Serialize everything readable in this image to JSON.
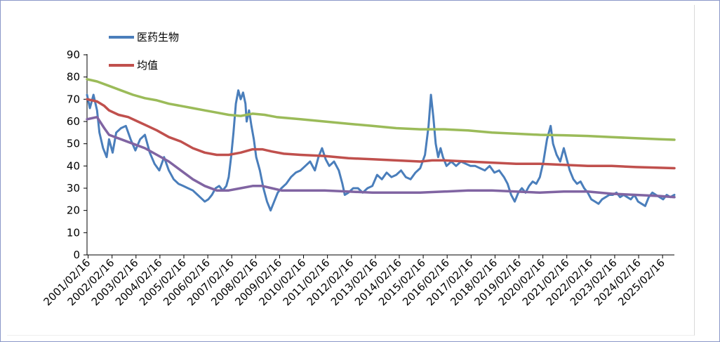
{
  "chart_data": {
    "type": "line",
    "title": "",
    "xlabel": "",
    "ylabel": "",
    "ylim": [
      0,
      90
    ],
    "yticks": [
      0,
      10,
      20,
      30,
      40,
      50,
      60,
      70,
      80,
      90
    ],
    "x_range": [
      2001.08,
      2025.62
    ],
    "categories": [
      "2001/02/16",
      "2002/02/16",
      "2003/02/16",
      "2004/02/16",
      "2005/02/16",
      "2006/02/16",
      "2007/02/16",
      "2008/02/16",
      "2009/02/16",
      "2010/02/16",
      "2011/02/16",
      "2012/02/16",
      "2013/02/16",
      "2014/02/16",
      "2015/02/16",
      "2016/02/16",
      "2017/02/16",
      "2018/02/16",
      "2019/02/16",
      "2020/02/16",
      "2021/02/16",
      "2022/02/16",
      "2023/02/16",
      "2024/02/16",
      "2025/02/16"
    ],
    "grid": false,
    "legend_position": "top-left",
    "series": [
      {
        "name": "医药生物",
        "color": "#4a7ebb",
        "points": [
          [
            2001.08,
            72
          ],
          [
            2001.2,
            66
          ],
          [
            2001.35,
            72
          ],
          [
            2001.5,
            65
          ],
          [
            2001.6,
            55
          ],
          [
            2001.75,
            48
          ],
          [
            2001.9,
            44
          ],
          [
            2002.0,
            52
          ],
          [
            2002.15,
            46
          ],
          [
            2002.3,
            55
          ],
          [
            2002.5,
            57
          ],
          [
            2002.7,
            58
          ],
          [
            2002.9,
            52
          ],
          [
            2003.1,
            47
          ],
          [
            2003.3,
            52
          ],
          [
            2003.5,
            54
          ],
          [
            2003.7,
            46
          ],
          [
            2003.9,
            41
          ],
          [
            2004.1,
            38
          ],
          [
            2004.3,
            44
          ],
          [
            2004.5,
            38
          ],
          [
            2004.7,
            34
          ],
          [
            2004.9,
            32
          ],
          [
            2005.1,
            31
          ],
          [
            2005.3,
            30
          ],
          [
            2005.5,
            29
          ],
          [
            2005.7,
            27
          ],
          [
            2005.9,
            25
          ],
          [
            2006.0,
            24
          ],
          [
            2006.15,
            25
          ],
          [
            2006.3,
            27
          ],
          [
            2006.45,
            30
          ],
          [
            2006.6,
            31
          ],
          [
            2006.75,
            29
          ],
          [
            2006.9,
            31
          ],
          [
            2007.0,
            35
          ],
          [
            2007.1,
            44
          ],
          [
            2007.2,
            55
          ],
          [
            2007.3,
            68
          ],
          [
            2007.4,
            74
          ],
          [
            2007.5,
            70
          ],
          [
            2007.6,
            73
          ],
          [
            2007.7,
            68
          ],
          [
            2007.75,
            60
          ],
          [
            2007.85,
            65
          ],
          [
            2007.95,
            58
          ],
          [
            2008.05,
            52
          ],
          [
            2008.15,
            44
          ],
          [
            2008.3,
            38
          ],
          [
            2008.45,
            30
          ],
          [
            2008.6,
            24
          ],
          [
            2008.75,
            20
          ],
          [
            2008.9,
            24
          ],
          [
            2009.05,
            28
          ],
          [
            2009.2,
            30
          ],
          [
            2009.4,
            32
          ],
          [
            2009.6,
            35
          ],
          [
            2009.8,
            37
          ],
          [
            2010.0,
            38
          ],
          [
            2010.2,
            40
          ],
          [
            2010.4,
            42
          ],
          [
            2010.6,
            38
          ],
          [
            2010.75,
            44
          ],
          [
            2010.9,
            48
          ],
          [
            2011.05,
            43
          ],
          [
            2011.2,
            40
          ],
          [
            2011.4,
            42
          ],
          [
            2011.6,
            38
          ],
          [
            2011.75,
            32
          ],
          [
            2011.85,
            27
          ],
          [
            2012.0,
            28
          ],
          [
            2012.2,
            30
          ],
          [
            2012.4,
            30
          ],
          [
            2012.6,
            28
          ],
          [
            2012.8,
            30
          ],
          [
            2013.0,
            31
          ],
          [
            2013.2,
            36
          ],
          [
            2013.4,
            34
          ],
          [
            2013.6,
            37
          ],
          [
            2013.8,
            35
          ],
          [
            2014.0,
            36
          ],
          [
            2014.2,
            38
          ],
          [
            2014.4,
            35
          ],
          [
            2014.6,
            34
          ],
          [
            2014.8,
            37
          ],
          [
            2015.0,
            39
          ],
          [
            2015.2,
            45
          ],
          [
            2015.35,
            58
          ],
          [
            2015.45,
            72
          ],
          [
            2015.55,
            62
          ],
          [
            2015.65,
            50
          ],
          [
            2015.75,
            44
          ],
          [
            2015.85,
            48
          ],
          [
            2015.95,
            44
          ],
          [
            2016.1,
            40
          ],
          [
            2016.3,
            42
          ],
          [
            2016.5,
            40
          ],
          [
            2016.7,
            42
          ],
          [
            2016.9,
            41
          ],
          [
            2017.1,
            40
          ],
          [
            2017.3,
            40
          ],
          [
            2017.5,
            39
          ],
          [
            2017.7,
            38
          ],
          [
            2017.9,
            40
          ],
          [
            2018.1,
            37
          ],
          [
            2018.3,
            38
          ],
          [
            2018.5,
            35
          ],
          [
            2018.65,
            32
          ],
          [
            2018.8,
            27
          ],
          [
            2018.95,
            24
          ],
          [
            2019.1,
            28
          ],
          [
            2019.25,
            30
          ],
          [
            2019.4,
            28
          ],
          [
            2019.55,
            31
          ],
          [
            2019.7,
            33
          ],
          [
            2019.85,
            32
          ],
          [
            2020.0,
            35
          ],
          [
            2020.15,
            42
          ],
          [
            2020.3,
            52
          ],
          [
            2020.45,
            58
          ],
          [
            2020.55,
            50
          ],
          [
            2020.7,
            45
          ],
          [
            2020.85,
            42
          ],
          [
            2021.0,
            48
          ],
          [
            2021.1,
            44
          ],
          [
            2021.25,
            38
          ],
          [
            2021.4,
            34
          ],
          [
            2021.55,
            32
          ],
          [
            2021.7,
            33
          ],
          [
            2021.85,
            30
          ],
          [
            2022.0,
            28
          ],
          [
            2022.15,
            25
          ],
          [
            2022.3,
            24
          ],
          [
            2022.45,
            23
          ],
          [
            2022.6,
            25
          ],
          [
            2022.75,
            26
          ],
          [
            2022.9,
            27
          ],
          [
            2023.05,
            27
          ],
          [
            2023.2,
            28
          ],
          [
            2023.35,
            26
          ],
          [
            2023.5,
            27
          ],
          [
            2023.65,
            26
          ],
          [
            2023.8,
            25
          ],
          [
            2023.95,
            27
          ],
          [
            2024.1,
            24
          ],
          [
            2024.25,
            23
          ],
          [
            2024.4,
            22
          ],
          [
            2024.55,
            26
          ],
          [
            2024.7,
            28
          ],
          [
            2024.85,
            27
          ],
          [
            2025.0,
            26
          ],
          [
            2025.15,
            25
          ],
          [
            2025.3,
            27
          ],
          [
            2025.45,
            26
          ],
          [
            2025.62,
            27
          ]
        ]
      },
      {
        "name": "均值",
        "color": "#c0504d",
        "points": [
          [
            2001.08,
            70
          ],
          [
            2001.5,
            69
          ],
          [
            2001.8,
            67
          ],
          [
            2002.0,
            65
          ],
          [
            2002.4,
            63
          ],
          [
            2002.8,
            62
          ],
          [
            2003.2,
            60
          ],
          [
            2003.6,
            58
          ],
          [
            2004.0,
            56
          ],
          [
            2004.5,
            53
          ],
          [
            2005.0,
            51
          ],
          [
            2005.5,
            48
          ],
          [
            2006.0,
            46
          ],
          [
            2006.5,
            45
          ],
          [
            2007.0,
            45
          ],
          [
            2007.5,
            46
          ],
          [
            2008.0,
            47.5
          ],
          [
            2008.4,
            47.5
          ],
          [
            2008.8,
            46.5
          ],
          [
            2009.3,
            45.5
          ],
          [
            2010.0,
            45
          ],
          [
            2011.0,
            44.5
          ],
          [
            2012.0,
            43.5
          ],
          [
            2013.0,
            43
          ],
          [
            2014.0,
            42.5
          ],
          [
            2015.0,
            42
          ],
          [
            2015.5,
            42.5
          ],
          [
            2016.0,
            42.5
          ],
          [
            2017.0,
            42
          ],
          [
            2018.0,
            41.5
          ],
          [
            2019.0,
            41
          ],
          [
            2020.0,
            41
          ],
          [
            2021.0,
            40.5
          ],
          [
            2022.0,
            40
          ],
          [
            2023.0,
            40
          ],
          [
            2024.0,
            39.5
          ],
          [
            2025.0,
            39.2
          ],
          [
            2025.62,
            39
          ]
        ]
      },
      {
        "name": "",
        "color": "#9bbb59",
        "points": [
          [
            2001.08,
            79
          ],
          [
            2001.5,
            78
          ],
          [
            2002.0,
            76
          ],
          [
            2002.5,
            74
          ],
          [
            2003.0,
            72
          ],
          [
            2003.5,
            70.5
          ],
          [
            2004.0,
            69.5
          ],
          [
            2004.5,
            68
          ],
          [
            2005.0,
            67
          ],
          [
            2005.5,
            66
          ],
          [
            2006.0,
            65
          ],
          [
            2006.5,
            64
          ],
          [
            2007.0,
            63
          ],
          [
            2007.5,
            62.5
          ],
          [
            2008.0,
            63.5
          ],
          [
            2008.5,
            63
          ],
          [
            2009.0,
            62
          ],
          [
            2010.0,
            61
          ],
          [
            2011.0,
            60
          ],
          [
            2012.0,
            59
          ],
          [
            2013.0,
            58
          ],
          [
            2014.0,
            57
          ],
          [
            2015.0,
            56.5
          ],
          [
            2016.0,
            56.5
          ],
          [
            2017.0,
            56
          ],
          [
            2018.0,
            55
          ],
          [
            2019.0,
            54.5
          ],
          [
            2020.0,
            54
          ],
          [
            2021.0,
            53.8
          ],
          [
            2022.0,
            53.5
          ],
          [
            2023.0,
            53
          ],
          [
            2024.0,
            52.5
          ],
          [
            2025.0,
            52
          ],
          [
            2025.62,
            51.8
          ]
        ]
      },
      {
        "name": "",
        "color": "#8064a2",
        "points": [
          [
            2001.08,
            61
          ],
          [
            2001.5,
            62
          ],
          [
            2001.8,
            57
          ],
          [
            2002.0,
            54
          ],
          [
            2002.5,
            52
          ],
          [
            2003.0,
            50
          ],
          [
            2003.5,
            48
          ],
          [
            2004.0,
            45
          ],
          [
            2004.5,
            42
          ],
          [
            2005.0,
            38
          ],
          [
            2005.5,
            34
          ],
          [
            2006.0,
            31
          ],
          [
            2006.5,
            29
          ],
          [
            2007.0,
            29
          ],
          [
            2007.5,
            30
          ],
          [
            2008.0,
            31
          ],
          [
            2008.4,
            31
          ],
          [
            2008.8,
            30
          ],
          [
            2009.2,
            29
          ],
          [
            2010.0,
            29
          ],
          [
            2011.0,
            29
          ],
          [
            2012.0,
            28.5
          ],
          [
            2013.0,
            28
          ],
          [
            2014.0,
            28
          ],
          [
            2015.0,
            28
          ],
          [
            2016.0,
            28.5
          ],
          [
            2017.0,
            29
          ],
          [
            2018.0,
            29
          ],
          [
            2019.0,
            28.5
          ],
          [
            2020.0,
            28
          ],
          [
            2021.0,
            28.5
          ],
          [
            2022.0,
            28.5
          ],
          [
            2023.0,
            27.5
          ],
          [
            2024.0,
            27
          ],
          [
            2025.0,
            26.5
          ],
          [
            2025.62,
            26
          ]
        ]
      }
    ]
  }
}
